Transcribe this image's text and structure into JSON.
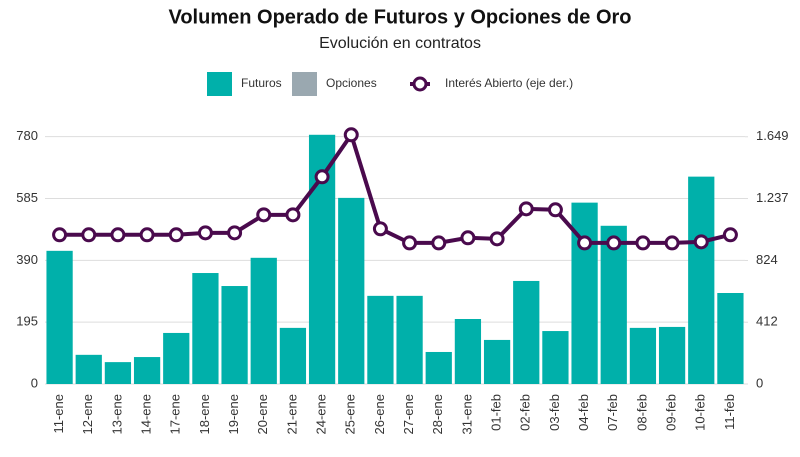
{
  "chart_data": {
    "type": "bar_line",
    "title": "Volumen Operado de Futuros y Opciones de Oro",
    "subtitle": "Evolución en contratos",
    "categories": [
      "11-ene",
      "12-ene",
      "13-ene",
      "14-ene",
      "17-ene",
      "18-ene",
      "19-ene",
      "20-ene",
      "21-ene",
      "24-ene",
      "25-ene",
      "26-ene",
      "27-ene",
      "28-ene",
      "31-ene",
      "01-feb",
      "02-feb",
      "03-feb",
      "04-feb",
      "07-feb",
      "08-feb",
      "09-feb",
      "10-feb",
      "11-feb"
    ],
    "series": [
      {
        "name": "Futuros",
        "color": "#00b0aa",
        "kind": "bar",
        "values": [
          420,
          92,
          69,
          85,
          161,
          350,
          309,
          398,
          177,
          786,
          587,
          278,
          278,
          101,
          205,
          139,
          325,
          167,
          572,
          499,
          177,
          180,
          654,
          287
        ]
      },
      {
        "name": "Opciones",
        "color": "#9aa8b0",
        "kind": "bar",
        "values": [
          0,
          0,
          0,
          0,
          0,
          0,
          0,
          0,
          0,
          0,
          0,
          0,
          0,
          0,
          0,
          0,
          0,
          0,
          0,
          0,
          0,
          0,
          0,
          0
        ]
      },
      {
        "name": "Interés Abierto (eje der.)",
        "color": "#4a0a4d",
        "kind": "line",
        "axis": "y2",
        "values": [
          995,
          995,
          995,
          995,
          995,
          1008,
          1008,
          1128,
          1128,
          1382,
          1662,
          1035,
          941,
          941,
          975,
          968,
          1168,
          1162,
          941,
          941,
          941,
          941,
          948,
          995
        ]
      }
    ],
    "ylim": [
      0,
      820
    ],
    "yticks": [
      0,
      195,
      390,
      585,
      780
    ],
    "y2lim": [
      0,
      1734
    ],
    "y2ticks": [
      0,
      412,
      824,
      {
        "value": 1237,
        "label": "1.237"
      },
      {
        "value": 1649,
        "label": "1.649"
      }
    ],
    "grid": true,
    "legend": "top"
  }
}
